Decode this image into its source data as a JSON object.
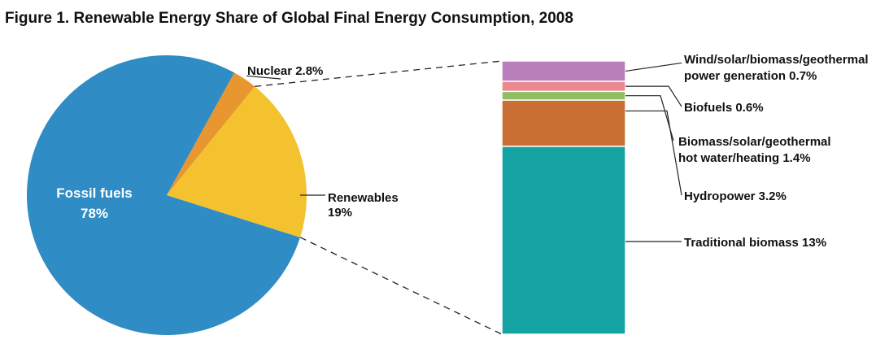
{
  "chart_data": [
    {
      "type": "pie",
      "title": "Figure 1. Renewable Energy Share of Global Final Energy Consumption, 2008",
      "slices": [
        {
          "name": "Fossil fuels",
          "value": 78,
          "value_label": "78%",
          "color": "#2f8cc4"
        },
        {
          "name": "Nuclear",
          "value": 2.8,
          "value_label": "2.8%",
          "color": "#e8962f"
        },
        {
          "name": "Renewables",
          "value": 19,
          "value_label": "19%",
          "color": "#f4c22e"
        }
      ]
    },
    {
      "type": "bar",
      "stacked": true,
      "breakdown_of": "Renewables",
      "segments": [
        {
          "name": "Traditional biomass",
          "value": 13,
          "value_label": "13%",
          "color": "#16a3a3"
        },
        {
          "name": "Hydropower",
          "value": 3.2,
          "value_label": "3.2%",
          "color": "#c96f34"
        },
        {
          "name": "Biofuels",
          "value": 0.6,
          "value_label": "0.6%",
          "color": "#8fbf62"
        },
        {
          "name": "Wind/solar/biomass/geothermal power generation",
          "value": 0.7,
          "value_label": "0.7%",
          "color": "#e9888f"
        },
        {
          "name": "Biomass/solar/geothermal hot water/heating",
          "value": 1.4,
          "value_label": "1.4%",
          "color": "#b87fbb"
        }
      ]
    }
  ],
  "labels": {
    "fossil_line1": "Fossil fuels",
    "fossil_line2": "78%",
    "nuclear": "Nuclear 2.8%",
    "renewables_line1": "Renewables",
    "renewables_line2": "19%",
    "wind_line1": "Wind/solar/biomass/geothermal",
    "wind_line2": "power generation 0.7%",
    "biofuels": "Biofuels 0.6%",
    "biomass_line1": "Biomass/solar/geothermal",
    "biomass_line2": "hot water/heating 1.4%",
    "hydro": "Hydropower 3.2%",
    "traditional": "Traditional biomass 13%"
  }
}
